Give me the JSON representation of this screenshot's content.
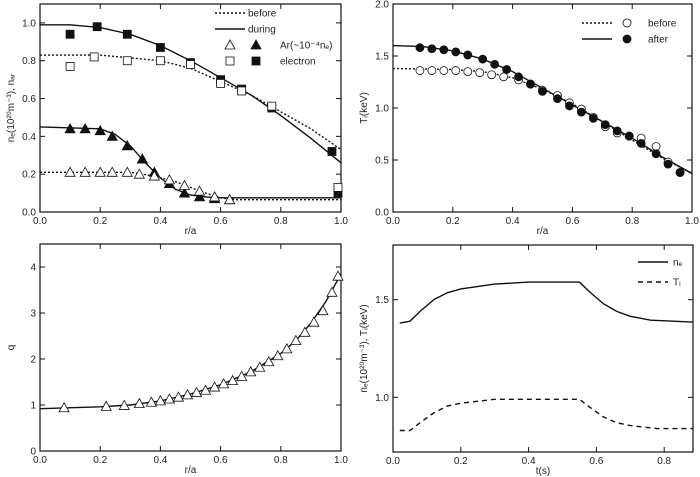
{
  "chart_data": [
    {
      "type": "line",
      "xlabel": "r/a",
      "ylabel": "nₑ(10²⁰m⁻³), nₐᵣ",
      "xlim": [
        0,
        1.0
      ],
      "ylim": [
        0,
        1.1
      ],
      "xticks": [
        "0.0",
        "0.2",
        "0.4",
        "0.6",
        "0.8",
        "1.0"
      ],
      "yticks": [
        "0.0",
        "0.2",
        "0.4",
        "0.6",
        "0.8",
        "1.0"
      ],
      "legend": {
        "placement": "top-right",
        "entries": [
          {
            "label": "before",
            "style": "dotted"
          },
          {
            "label": "during",
            "style": "solid"
          },
          {
            "label": "Ar(~10⁻⁴nₑ)",
            "markers": [
              "open-triangle",
              "filled-triangle"
            ]
          },
          {
            "label": "electron",
            "markers": [
              "open-square",
              "filled-square"
            ]
          }
        ]
      },
      "series": [
        {
          "style": "solid",
          "marker": "none",
          "points": [
            [
              0,
              0.99
            ],
            [
              0.1,
              0.99
            ],
            [
              0.2,
              0.975
            ],
            [
              0.3,
              0.94
            ],
            [
              0.4,
              0.88
            ],
            [
              0.5,
              0.8
            ],
            [
              0.6,
              0.71
            ],
            [
              0.7,
              0.62
            ],
            [
              0.8,
              0.51
            ],
            [
              0.9,
              0.39
            ],
            [
              1.0,
              0.26
            ]
          ]
        },
        {
          "style": "dotted",
          "marker": "none",
          "points": [
            [
              0,
              0.83
            ],
            [
              0.2,
              0.83
            ],
            [
              0.3,
              0.815
            ],
            [
              0.4,
              0.8
            ],
            [
              0.5,
              0.76
            ],
            [
              0.6,
              0.69
            ],
            [
              0.7,
              0.62
            ],
            [
              0.8,
              0.53
            ],
            [
              0.9,
              0.44
            ],
            [
              1.0,
              0.33
            ]
          ]
        },
        {
          "style": "none",
          "marker": "filled-square",
          "points": [
            [
              0.1,
              0.94
            ],
            [
              0.19,
              0.98
            ],
            [
              0.29,
              0.94
            ],
            [
              0.4,
              0.87
            ],
            [
              0.5,
              0.79
            ],
            [
              0.6,
              0.7
            ],
            [
              0.67,
              0.65
            ],
            [
              0.77,
              0.55
            ],
            [
              0.97,
              0.32
            ],
            [
              0.99,
              0.1
            ]
          ]
        },
        {
          "style": "none",
          "marker": "open-square",
          "points": [
            [
              0.1,
              0.77
            ],
            [
              0.18,
              0.82
            ],
            [
              0.29,
              0.8
            ],
            [
              0.4,
              0.8
            ],
            [
              0.5,
              0.78
            ],
            [
              0.6,
              0.68
            ],
            [
              0.67,
              0.64
            ],
            [
              0.77,
              0.56
            ],
            [
              0.99,
              0.13
            ]
          ]
        },
        {
          "style": "solid",
          "marker": "none",
          "points": [
            [
              0,
              0.45
            ],
            [
              0.2,
              0.44
            ],
            [
              0.25,
              0.41
            ],
            [
              0.3,
              0.35
            ],
            [
              0.35,
              0.26
            ],
            [
              0.4,
              0.18
            ],
            [
              0.45,
              0.12
            ],
            [
              0.5,
              0.09
            ],
            [
              0.55,
              0.08
            ],
            [
              0.6,
              0.075
            ],
            [
              1.0,
              0.075
            ]
          ]
        },
        {
          "style": "dotted",
          "marker": "none",
          "points": [
            [
              0,
              0.21
            ],
            [
              0.3,
              0.21
            ],
            [
              0.38,
              0.19
            ],
            [
              0.45,
              0.16
            ],
            [
              0.5,
              0.13
            ],
            [
              0.55,
              0.1
            ],
            [
              0.6,
              0.075
            ],
            [
              0.65,
              0.065
            ],
            [
              1.0,
              0.065
            ]
          ]
        },
        {
          "style": "none",
          "marker": "filled-triangle",
          "points": [
            [
              0.1,
              0.44
            ],
            [
              0.15,
              0.44
            ],
            [
              0.2,
              0.43
            ],
            [
              0.24,
              0.4
            ],
            [
              0.29,
              0.35
            ],
            [
              0.34,
              0.28
            ],
            [
              0.38,
              0.21
            ],
            [
              0.43,
              0.15
            ],
            [
              0.48,
              0.1
            ],
            [
              0.53,
              0.08
            ],
            [
              0.58,
              0.07
            ],
            [
              0.63,
              0.065
            ]
          ]
        },
        {
          "style": "none",
          "marker": "open-triangle",
          "points": [
            [
              0.1,
              0.21
            ],
            [
              0.15,
              0.21
            ],
            [
              0.2,
              0.21
            ],
            [
              0.24,
              0.21
            ],
            [
              0.29,
              0.21
            ],
            [
              0.33,
              0.2
            ],
            [
              0.38,
              0.19
            ],
            [
              0.43,
              0.17
            ],
            [
              0.48,
              0.14
            ],
            [
              0.53,
              0.11
            ],
            [
              0.58,
              0.08
            ],
            [
              0.63,
              0.065
            ]
          ]
        }
      ]
    },
    {
      "type": "line",
      "xlabel": "r/a",
      "ylabel": "Tᵢ(keV)",
      "xlim": [
        0,
        1.0
      ],
      "ylim": [
        0,
        2.0
      ],
      "xticks": [
        "0.0",
        "0.2",
        "0.4",
        "0.6",
        "0.8",
        "1.0"
      ],
      "yticks": [
        "0.0",
        "0.5",
        "1.0",
        "1.5",
        "2.0"
      ],
      "legend": {
        "placement": "top-right",
        "entries": [
          {
            "label": "before",
            "style": "dotted",
            "markers": [
              "open-circle"
            ]
          },
          {
            "label": "after",
            "style": "solid",
            "markers": [
              "filled-circle"
            ]
          }
        ]
      },
      "series": [
        {
          "style": "solid",
          "marker": "none",
          "points": [
            [
              0,
              1.6
            ],
            [
              0.1,
              1.59
            ],
            [
              0.2,
              1.55
            ],
            [
              0.3,
              1.47
            ],
            [
              0.4,
              1.35
            ],
            [
              0.5,
              1.19
            ],
            [
              0.6,
              1.03
            ],
            [
              0.7,
              0.87
            ],
            [
              0.8,
              0.71
            ],
            [
              0.9,
              0.53
            ],
            [
              1.0,
              0.37
            ]
          ]
        },
        {
          "style": "dotted",
          "marker": "none",
          "points": [
            [
              0,
              1.38
            ],
            [
              0.2,
              1.37
            ],
            [
              0.3,
              1.35
            ],
            [
              0.4,
              1.29
            ],
            [
              0.5,
              1.18
            ],
            [
              0.6,
              1.04
            ],
            [
              0.7,
              0.87
            ],
            [
              0.8,
              0.69
            ],
            [
              0.9,
              0.52
            ],
            [
              1.0,
              0.37
            ]
          ]
        },
        {
          "style": "none",
          "marker": "open-circle",
          "points": [
            [
              0.09,
              1.36
            ],
            [
              0.13,
              1.36
            ],
            [
              0.17,
              1.36
            ],
            [
              0.21,
              1.36
            ],
            [
              0.25,
              1.35
            ],
            [
              0.29,
              1.34
            ],
            [
              0.33,
              1.32
            ],
            [
              0.37,
              1.3
            ],
            [
              0.42,
              1.27
            ],
            [
              0.46,
              1.23
            ],
            [
              0.5,
              1.17
            ],
            [
              0.55,
              1.12
            ],
            [
              0.59,
              1.05
            ],
            [
              0.63,
              0.99
            ],
            [
              0.67,
              0.91
            ],
            [
              0.71,
              0.82
            ],
            [
              0.75,
              0.76
            ],
            [
              0.79,
              0.73
            ],
            [
              0.83,
              0.71
            ],
            [
              0.88,
              0.63
            ],
            [
              0.92,
              0.48
            ],
            [
              0.96,
              0.38
            ]
          ]
        },
        {
          "style": "none",
          "marker": "filled-circle",
          "points": [
            [
              0.09,
              1.58
            ],
            [
              0.13,
              1.57
            ],
            [
              0.17,
              1.56
            ],
            [
              0.21,
              1.54
            ],
            [
              0.25,
              1.51
            ],
            [
              0.3,
              1.47
            ],
            [
              0.34,
              1.42
            ],
            [
              0.38,
              1.37
            ],
            [
              0.42,
              1.3
            ],
            [
              0.46,
              1.23
            ],
            [
              0.5,
              1.16
            ],
            [
              0.55,
              1.09
            ],
            [
              0.59,
              1.02
            ],
            [
              0.63,
              0.96
            ],
            [
              0.67,
              0.9
            ],
            [
              0.71,
              0.84
            ],
            [
              0.75,
              0.78
            ],
            [
              0.79,
              0.73
            ],
            [
              0.83,
              0.66
            ],
            [
              0.88,
              0.56
            ],
            [
              0.92,
              0.46
            ],
            [
              0.96,
              0.38
            ]
          ]
        }
      ]
    },
    {
      "type": "line",
      "xlabel": "r/a",
      "ylabel": "q",
      "xlim": [
        0,
        1.0
      ],
      "ylim": [
        0,
        4.5
      ],
      "xticks": [
        "0.0",
        "0.2",
        "0.4",
        "0.6",
        "0.8",
        "1.0"
      ],
      "yticks": [
        "0",
        "1",
        "2",
        "3",
        "4"
      ],
      "series": [
        {
          "style": "solid",
          "marker": "none",
          "points": [
            [
              0,
              0.92
            ],
            [
              0.2,
              0.96
            ],
            [
              0.3,
              1.0
            ],
            [
              0.4,
              1.09
            ],
            [
              0.5,
              1.24
            ],
            [
              0.6,
              1.44
            ],
            [
              0.7,
              1.72
            ],
            [
              0.8,
              2.12
            ],
            [
              0.85,
              2.4
            ],
            [
              0.9,
              2.78
            ],
            [
              0.95,
              3.25
            ],
            [
              1.0,
              3.85
            ]
          ]
        },
        {
          "style": "none",
          "marker": "open-triangle",
          "points": [
            [
              0.08,
              0.94
            ],
            [
              0.22,
              0.97
            ],
            [
              0.28,
              0.99
            ],
            [
              0.33,
              1.03
            ],
            [
              0.37,
              1.06
            ],
            [
              0.4,
              1.09
            ],
            [
              0.43,
              1.13
            ],
            [
              0.46,
              1.17
            ],
            [
              0.49,
              1.22
            ],
            [
              0.52,
              1.27
            ],
            [
              0.55,
              1.32
            ],
            [
              0.58,
              1.39
            ],
            [
              0.61,
              1.46
            ],
            [
              0.64,
              1.53
            ],
            [
              0.67,
              1.62
            ],
            [
              0.7,
              1.72
            ],
            [
              0.73,
              1.82
            ],
            [
              0.76,
              1.94
            ],
            [
              0.79,
              2.07
            ],
            [
              0.82,
              2.22
            ],
            [
              0.85,
              2.4
            ],
            [
              0.88,
              2.58
            ],
            [
              0.91,
              2.8
            ],
            [
              0.94,
              3.05
            ],
            [
              0.97,
              3.45
            ],
            [
              0.99,
              3.8
            ]
          ]
        }
      ]
    },
    {
      "type": "line",
      "xlabel": "t(s)",
      "ylabel": "nₑ(10²⁰m⁻³), Tᵢ(keV)",
      "xlim": [
        0,
        0.885
      ],
      "ylim": [
        0.72,
        1.78
      ],
      "xticks": [
        "0.0",
        "0.2",
        "0.4",
        "0.6",
        "0.8"
      ],
      "yticks": [
        "1.0",
        "1.5"
      ],
      "legend": {
        "placement": "top-right",
        "entries": [
          {
            "label": "nₑ",
            "style": "solid"
          },
          {
            "label": "Tᵢ",
            "style": "dashed"
          }
        ]
      },
      "series": [
        {
          "name": "nₑ",
          "style": "solid",
          "marker": "none",
          "points": [
            [
              0.02,
              1.38
            ],
            [
              0.05,
              1.39
            ],
            [
              0.08,
              1.44
            ],
            [
              0.12,
              1.5
            ],
            [
              0.16,
              1.535
            ],
            [
              0.2,
              1.555
            ],
            [
              0.3,
              1.58
            ],
            [
              0.4,
              1.59
            ],
            [
              0.55,
              1.59
            ],
            [
              0.58,
              1.54
            ],
            [
              0.62,
              1.48
            ],
            [
              0.66,
              1.44
            ],
            [
              0.7,
              1.415
            ],
            [
              0.76,
              1.395
            ],
            [
              0.885,
              1.385
            ]
          ]
        },
        {
          "name": "Tᵢ",
          "style": "dashed",
          "marker": "none",
          "points": [
            [
              0.02,
              0.83
            ],
            [
              0.05,
              0.83
            ],
            [
              0.08,
              0.87
            ],
            [
              0.12,
              0.92
            ],
            [
              0.16,
              0.955
            ],
            [
              0.2,
              0.97
            ],
            [
              0.3,
              0.99
            ],
            [
              0.55,
              0.99
            ],
            [
              0.58,
              0.95
            ],
            [
              0.62,
              0.9
            ],
            [
              0.66,
              0.87
            ],
            [
              0.7,
              0.855
            ],
            [
              0.78,
              0.84
            ],
            [
              0.885,
              0.84
            ]
          ]
        }
      ]
    }
  ]
}
